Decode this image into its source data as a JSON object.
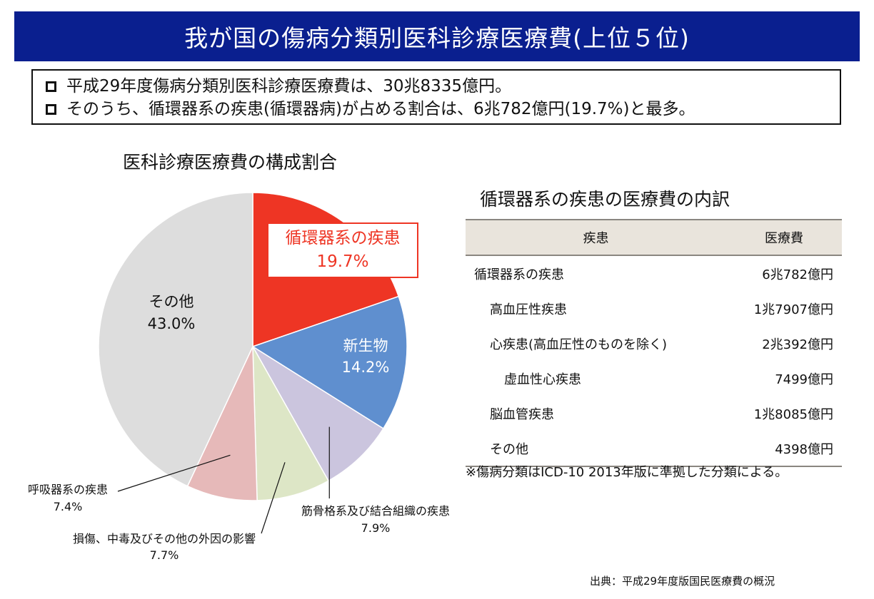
{
  "header": {
    "title": "我が国の傷病分類別医科診療医療費(上位５位)"
  },
  "summary": {
    "lines": [
      "平成29年度傷病分類別医科診療医療費は、30兆8335億円。",
      "そのうち、循環器系の疾患(循環器病)が占める割合は、6兆782億円(19.7%)と最多。"
    ]
  },
  "colors": {
    "banner": "#0a1f8f",
    "circulatory": "#ee3524",
    "neoplasm": "#5f8fcf",
    "musculoskeletal": "#cbc5de",
    "injury": "#dde6c6",
    "respiratory": "#e6b9b9",
    "other": "#dddddd"
  },
  "chart_data": {
    "type": "pie",
    "title": "医科診療医療費の構成割合",
    "slices": [
      {
        "label": "循環器系の疾患",
        "value": 19.7,
        "value_label": "19.7%",
        "color": "#ee3524"
      },
      {
        "label": "新生物",
        "value": 14.2,
        "value_label": "14.2%",
        "color": "#5f8fcf"
      },
      {
        "label": "筋骨格系及び結合組織の疾患",
        "value": 7.9,
        "value_label": "7.9%",
        "color": "#cbc5de"
      },
      {
        "label": "損傷、中毒及びその他の外因の影響",
        "value": 7.7,
        "value_label": "7.7%",
        "color": "#dde6c6"
      },
      {
        "label": "呼吸器系の疾患",
        "value": 7.4,
        "value_label": "7.4%",
        "color": "#e6b9b9"
      },
      {
        "label": "その他",
        "value": 43.0,
        "value_label": "43.0%",
        "color": "#dddddd"
      }
    ]
  },
  "table": {
    "title": "循環器系の疾患の医療費の内訳",
    "headers": [
      "疾患",
      "医療費"
    ],
    "rows": [
      {
        "name": "循環器系の疾患",
        "value": "6兆782億円",
        "indent": 0
      },
      {
        "name": "高血圧性疾患",
        "value": "1兆7907億円",
        "indent": 1
      },
      {
        "name": "心疾患(高血圧性のものを除く)",
        "value": "2兆392億円",
        "indent": 1
      },
      {
        "name": "虚血性心疾患",
        "value": "7499億円",
        "indent": 2
      },
      {
        "name": "脳血管疾患",
        "value": "1兆8085億円",
        "indent": 1
      },
      {
        "name": "その他",
        "value": "4398億円",
        "indent": 1
      }
    ]
  },
  "note": "※傷病分類はICD-10 2013年版に準拠した分類による。",
  "source": "出典：平成29年度版国民医療費の概況"
}
